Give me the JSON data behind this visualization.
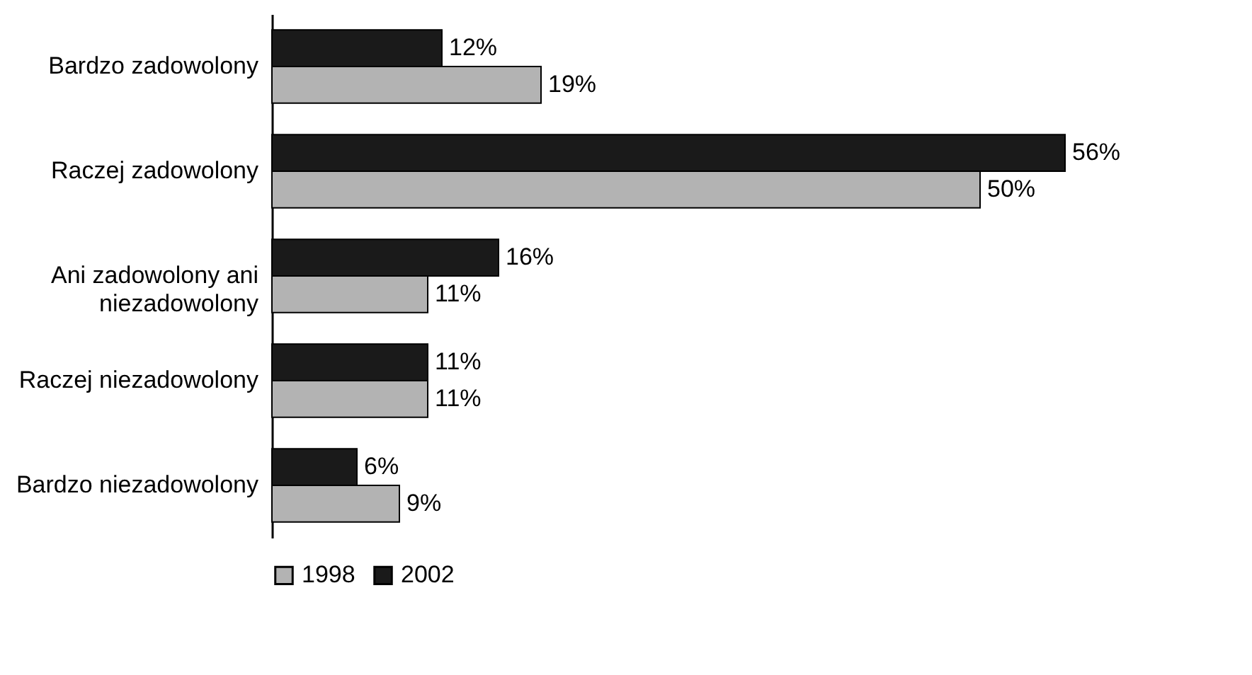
{
  "chart_data": {
    "type": "bar",
    "orientation": "horizontal",
    "categories": [
      "Bardzo zadowolony",
      "Raczej zadowolony",
      "Ani zadowolony ani niezadowolony",
      "Raczej niezadowolony",
      "Bardzo niezadowolony"
    ],
    "series": [
      {
        "name": "1998",
        "color": "#b3b3b3",
        "values": [
          19,
          50,
          11,
          11,
          9
        ],
        "value_labels": [
          "19%",
          "50%",
          "11%",
          "11%",
          "9%"
        ]
      },
      {
        "name": "2002",
        "color": "#1a1a1a",
        "values": [
          12,
          56,
          16,
          11,
          6
        ],
        "value_labels": [
          "12%",
          "56%",
          "16%",
          "11%",
          "6%"
        ]
      }
    ],
    "legend": "bottom",
    "grid": false
  }
}
